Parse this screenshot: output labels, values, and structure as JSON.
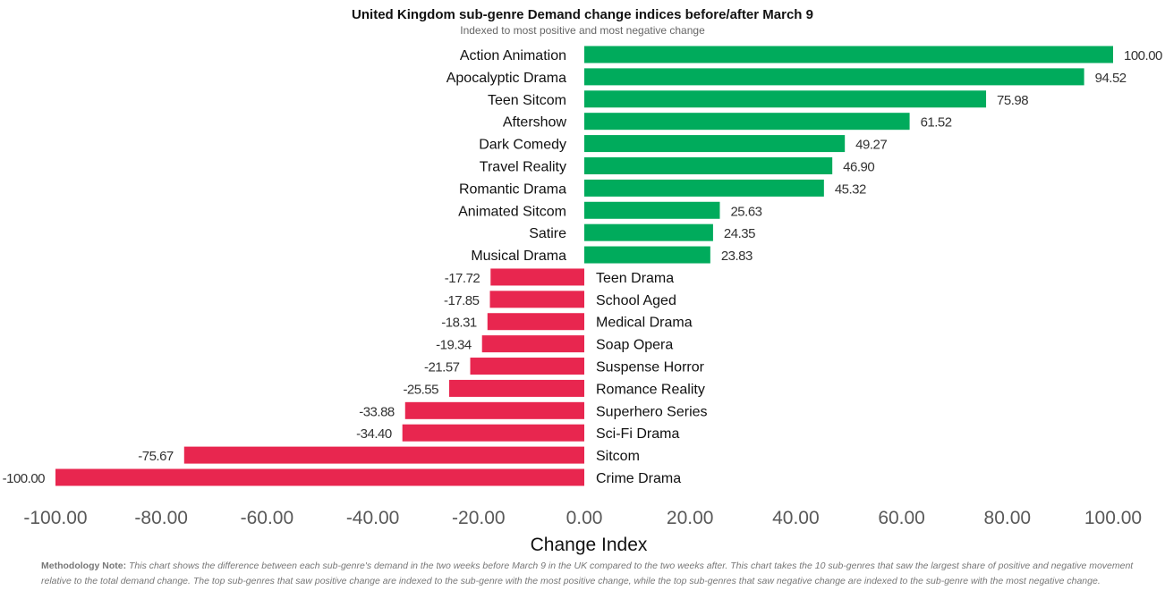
{
  "chart_data": {
    "type": "bar",
    "orientation": "horizontal",
    "title": "United Kingdom sub-genre Demand change indices before/after March 9",
    "subtitle": "Indexed to most positive and most negative change",
    "xlabel": "Change Index",
    "ylabel": "",
    "xlim": [
      -100,
      100
    ],
    "x_ticks": [
      "-100.00",
      "-80.00",
      "-60.00",
      "-40.00",
      "-20.00",
      "0.00",
      "20.00",
      "40.00",
      "60.00",
      "80.00",
      "100.00"
    ],
    "grid": false,
    "legend": "none",
    "categories": [
      "Action Animation",
      "Apocalyptic Drama",
      "Teen Sitcom",
      "Aftershow",
      "Dark Comedy",
      "Travel Reality",
      "Romantic Drama",
      "Animated Sitcom",
      "Satire",
      "Musical Drama",
      "Teen Drama",
      "School Aged",
      "Medical Drama",
      "Soap Opera",
      "Suspense Horror",
      "Romance Reality",
      "Superhero Series",
      "Sci-Fi Drama",
      "Sitcom",
      "Crime Drama"
    ],
    "values": [
      100.0,
      94.52,
      75.98,
      61.52,
      49.27,
      46.9,
      45.32,
      25.63,
      24.35,
      23.83,
      -17.72,
      -17.85,
      -18.31,
      -19.34,
      -21.57,
      -25.55,
      -33.88,
      -34.4,
      -75.67,
      -100.0
    ],
    "value_labels": [
      "100.00",
      "94.52",
      "75.98",
      "61.52",
      "49.27",
      "46.90",
      "45.32",
      "25.63",
      "24.35",
      "23.83",
      "-17.72",
      "-17.85",
      "-18.31",
      "-19.34",
      "-21.57",
      "-25.55",
      "-33.88",
      "-34.40",
      "-75.67",
      "-100.00"
    ],
    "colors": {
      "positive": "#00ab5c",
      "negative": "#e8264f"
    }
  },
  "methodology": {
    "label": "Methodology Note:",
    "text": " This chart shows the difference between each sub-genre's demand in the two weeks before March 9 in the UK compared to the two weeks after. This chart takes the 10 sub-genres that saw the largest share of positive and negative movement relative to the total demand change. The top sub-genres that saw positive change are indexed to the sub-genre with the most positive change, while the top sub-genres that saw negative change are indexed to the sub-genre with the most negative change."
  }
}
